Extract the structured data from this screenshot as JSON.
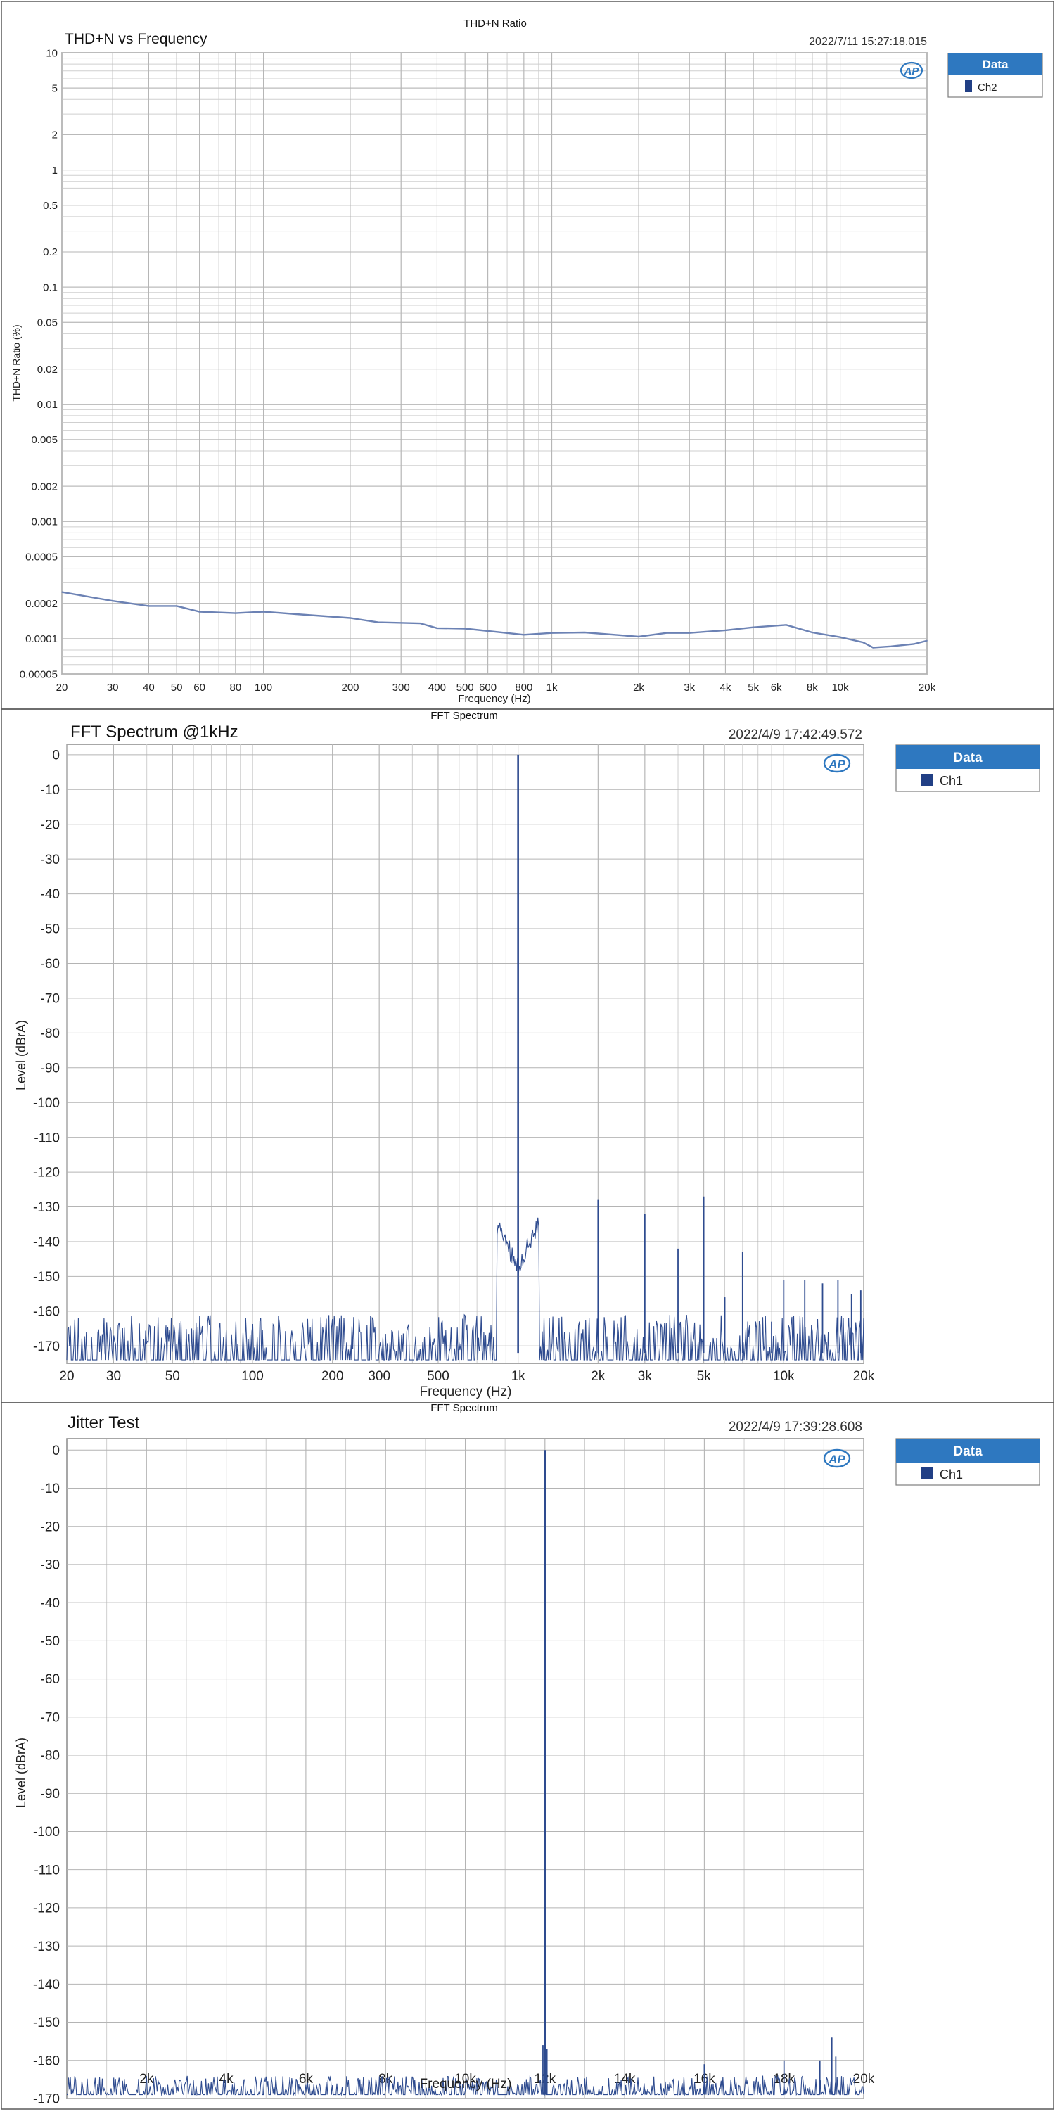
{
  "chart_data": [
    {
      "type": "line",
      "title": "THD+N vs Frequency",
      "subtitle": "THD+N Ratio",
      "timestamp": "2022/7/11 15:27:18.015",
      "xlabel": "Frequency (Hz)",
      "ylabel": "THD+N Ratio (%)",
      "x_scale": "log",
      "y_scale": "log",
      "xlim": [
        20,
        20000
      ],
      "ylim": [
        5e-05,
        10
      ],
      "x_ticks": [
        {
          "v": 20,
          "label": "20"
        },
        {
          "v": 30,
          "label": "30"
        },
        {
          "v": 40,
          "label": "40"
        },
        {
          "v": 50,
          "label": "50"
        },
        {
          "v": 60,
          "label": "60"
        },
        {
          "v": 80,
          "label": "80"
        },
        {
          "v": 100,
          "label": "100"
        },
        {
          "v": 200,
          "label": "200"
        },
        {
          "v": 300,
          "label": "300"
        },
        {
          "v": 400,
          "label": "400"
        },
        {
          "v": 500,
          "label": "500"
        },
        {
          "v": 600,
          "label": "600"
        },
        {
          "v": 800,
          "label": "800"
        },
        {
          "v": 1000,
          "label": "1k"
        },
        {
          "v": 2000,
          "label": "2k"
        },
        {
          "v": 3000,
          "label": "3k"
        },
        {
          "v": 4000,
          "label": "4k"
        },
        {
          "v": 5000,
          "label": "5k"
        },
        {
          "v": 6000,
          "label": "6k"
        },
        {
          "v": 8000,
          "label": "8k"
        },
        {
          "v": 10000,
          "label": "10k"
        },
        {
          "v": 20000,
          "label": "20k"
        }
      ],
      "y_ticks": [
        {
          "v": 10,
          "label": "10"
        },
        {
          "v": 5,
          "label": "5"
        },
        {
          "v": 2,
          "label": "2"
        },
        {
          "v": 1,
          "label": "1"
        },
        {
          "v": 0.5,
          "label": "0.5"
        },
        {
          "v": 0.2,
          "label": "0.2"
        },
        {
          "v": 0.1,
          "label": "0.1"
        },
        {
          "v": 0.05,
          "label": "0.05"
        },
        {
          "v": 0.02,
          "label": "0.02"
        },
        {
          "v": 0.01,
          "label": "0.01"
        },
        {
          "v": 0.005,
          "label": "0.005"
        },
        {
          "v": 0.002,
          "label": "0.002"
        },
        {
          "v": 0.001,
          "label": "0.001"
        },
        {
          "v": 0.0005,
          "label": "0.0005"
        },
        {
          "v": 0.0002,
          "label": "0.0002"
        },
        {
          "v": 0.0001,
          "label": "0.0001"
        },
        {
          "v": 5e-05,
          "label": "0.00005"
        }
      ],
      "legend": {
        "header": "Data",
        "position": "right",
        "items": [
          {
            "name": "Ch2",
            "color": "#213f85"
          }
        ]
      },
      "series": [
        {
          "name": "Ch2",
          "color": "#6c82b4",
          "points": [
            [
              20,
              0.00025
            ],
            [
              30,
              0.00021
            ],
            [
              40,
              0.00019
            ],
            [
              50,
              0.00019
            ],
            [
              60,
              0.00017
            ],
            [
              80,
              0.000165
            ],
            [
              100,
              0.00017
            ],
            [
              130,
              0.000162
            ],
            [
              200,
              0.00015
            ],
            [
              250,
              0.000138
            ],
            [
              350,
              0.000135
            ],
            [
              400,
              0.000123
            ],
            [
              500,
              0.000122
            ],
            [
              800,
              0.000108
            ],
            [
              1000,
              0.000112
            ],
            [
              1300,
              0.000113
            ],
            [
              2000,
              0.000104
            ],
            [
              2500,
              0.000112
            ],
            [
              3000,
              0.000112
            ],
            [
              4000,
              0.000118
            ],
            [
              5000,
              0.000125
            ],
            [
              6500,
              0.000131
            ],
            [
              8000,
              0.000113
            ],
            [
              10000,
              0.000103
            ],
            [
              12000,
              9.3e-05
            ],
            [
              13000,
              8.4e-05
            ],
            [
              15000,
              8.6e-05
            ],
            [
              18000,
              9e-05
            ],
            [
              20000,
              9.6e-05
            ]
          ]
        }
      ]
    },
    {
      "type": "line",
      "title": "FFT Spectrum @1kHz",
      "subtitle": "FFT Spectrum",
      "timestamp": "2022/4/9 17:42:49.572",
      "xlabel": "Frequency (Hz)",
      "ylabel": "Level (dBrA)",
      "x_scale": "log",
      "xlim": [
        20,
        20000
      ],
      "ylim": [
        -175,
        3
      ],
      "x_ticks": [
        {
          "v": 20,
          "label": "20"
        },
        {
          "v": 30,
          "label": "30"
        },
        {
          "v": 50,
          "label": "50"
        },
        {
          "v": 100,
          "label": "100"
        },
        {
          "v": 200,
          "label": "200"
        },
        {
          "v": 300,
          "label": "300"
        },
        {
          "v": 500,
          "label": "500"
        },
        {
          "v": 1000,
          "label": "1k"
        },
        {
          "v": 2000,
          "label": "2k"
        },
        {
          "v": 3000,
          "label": "3k"
        },
        {
          "v": 5000,
          "label": "5k"
        },
        {
          "v": 10000,
          "label": "10k"
        },
        {
          "v": 20000,
          "label": "20k"
        }
      ],
      "y_ticks": [
        0,
        -10,
        -20,
        -30,
        -40,
        -50,
        -60,
        -70,
        -80,
        -90,
        -100,
        -110,
        -120,
        -130,
        -140,
        -150,
        -160,
        -170
      ],
      "noise_floor": [
        -172,
        -161
      ],
      "legend": {
        "header": "Data",
        "position": "right",
        "items": [
          {
            "name": "Ch1",
            "color": "#213f85"
          }
        ]
      },
      "peaks": [
        {
          "x": 1000,
          "y": 0
        },
        {
          "x": 2000,
          "y": -128
        },
        {
          "x": 3000,
          "y": -132
        },
        {
          "x": 4000,
          "y": -142
        },
        {
          "x": 5000,
          "y": -127
        },
        {
          "x": 6000,
          "y": -156
        },
        {
          "x": 7000,
          "y": -143
        },
        {
          "x": 9000,
          "y": -163
        },
        {
          "x": 10000,
          "y": -151
        },
        {
          "x": 12000,
          "y": -151
        },
        {
          "x": 14000,
          "y": -152
        },
        {
          "x": 16000,
          "y": -151
        },
        {
          "x": 18000,
          "y": -155
        },
        {
          "x": 19500,
          "y": -154
        }
      ]
    },
    {
      "type": "line",
      "title": "Jitter Test",
      "subtitle": "FFT Spectrum",
      "timestamp": "2022/4/9 17:39:28.608",
      "xlabel": "Frequency (Hz)",
      "ylabel": "Level (dBrA)",
      "x_scale": "linear",
      "xlim": [
        0,
        20000
      ],
      "ylim": [
        -170,
        3
      ],
      "x_ticks": [
        {
          "v": 2000,
          "label": "2k"
        },
        {
          "v": 4000,
          "label": "4k"
        },
        {
          "v": 6000,
          "label": "6k"
        },
        {
          "v": 8000,
          "label": "8k"
        },
        {
          "v": 10000,
          "label": "10k"
        },
        {
          "v": 12000,
          "label": "12k"
        },
        {
          "v": 14000,
          "label": "14k"
        },
        {
          "v": 16000,
          "label": "16k"
        },
        {
          "v": 18000,
          "label": "18k"
        },
        {
          "v": 20000,
          "label": "20k"
        }
      ],
      "y_ticks": [
        0,
        -10,
        -20,
        -30,
        -40,
        -50,
        -60,
        -70,
        -80,
        -90,
        -100,
        -110,
        -120,
        -130,
        -140,
        -150,
        -160,
        -170
      ],
      "noise_floor": [
        -169,
        -164
      ],
      "legend": {
        "header": "Data",
        "position": "right",
        "items": [
          {
            "name": "Ch1",
            "color": "#213f85"
          }
        ]
      },
      "peaks": [
        {
          "x": 12000,
          "y": 0
        },
        {
          "x": 11950,
          "y": -156
        },
        {
          "x": 12050,
          "y": -157
        },
        {
          "x": 16000,
          "y": -161
        },
        {
          "x": 18000,
          "y": -160
        },
        {
          "x": 18900,
          "y": -160
        },
        {
          "x": 19200,
          "y": -154
        },
        {
          "x": 19300,
          "y": -159
        }
      ]
    }
  ]
}
